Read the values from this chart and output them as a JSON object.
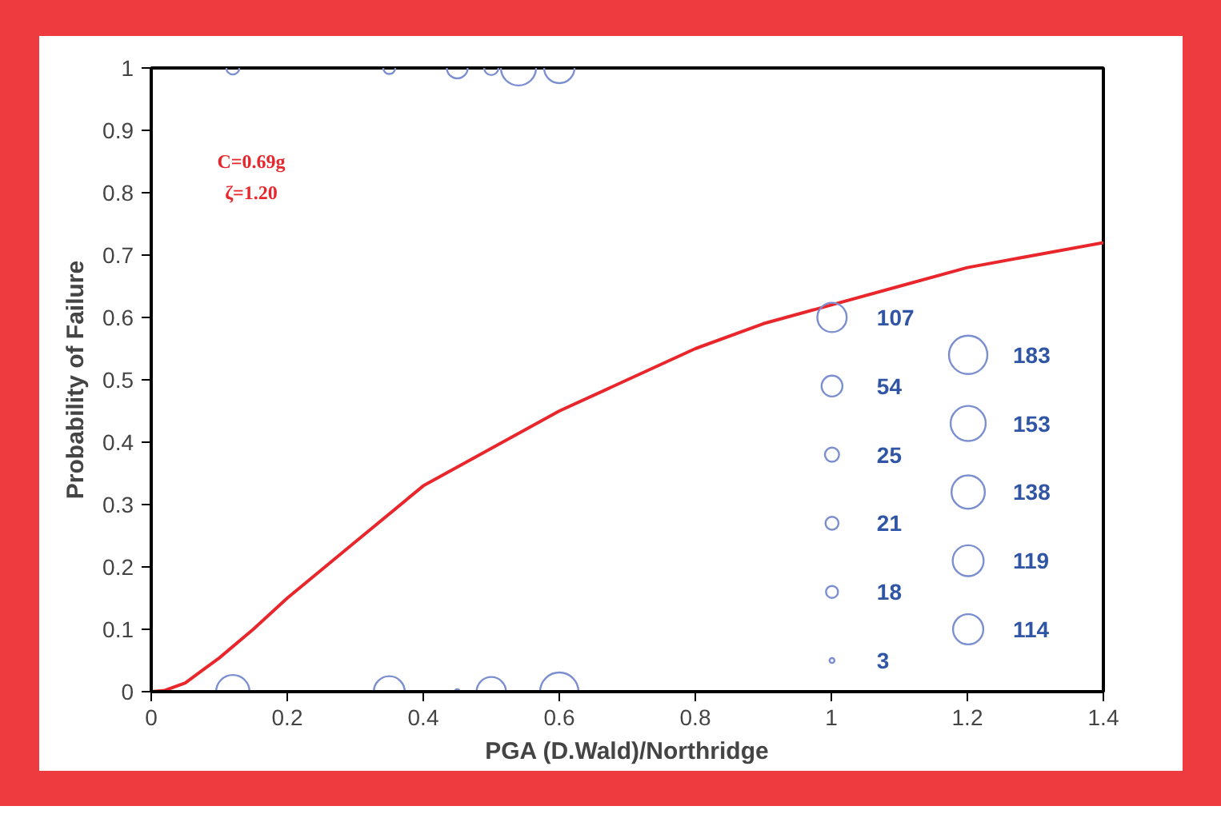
{
  "chart_data": {
    "type": "line",
    "xlabel": "PGA (D.Wald)/Northridge",
    "ylabel": "Probability of Failure",
    "xlim": [
      0,
      1.4
    ],
    "ylim": [
      0,
      1
    ],
    "xticks": [
      0,
      0.2,
      0.4,
      0.6,
      0.8,
      1,
      1.2,
      1.4
    ],
    "yticks": [
      0,
      0.1,
      0.2,
      0.3,
      0.4,
      0.5,
      0.6,
      0.7,
      0.8,
      0.9,
      1
    ],
    "grid": false,
    "annotations": [
      "C=0.69g",
      "ζ=1.20"
    ],
    "size_legend": [
      107,
      54,
      25,
      21,
      18,
      3,
      183,
      153,
      138,
      119,
      114
    ],
    "series": [
      {
        "color": "#e8262b",
        "x": [
          0,
          0.02,
          0.05,
          0.1,
          0.15,
          0.2,
          0.3,
          0.4,
          0.5,
          0.6,
          0.7,
          0.8,
          0.9,
          1.0,
          1.1,
          1.2,
          1.3,
          1.4
        ],
        "values": [
          0,
          0.002,
          0.014,
          0.054,
          0.1,
          0.15,
          0.24,
          0.33,
          0.39,
          0.45,
          0.5,
          0.55,
          0.59,
          0.62,
          0.65,
          0.68,
          0.7,
          0.72
        ]
      },
      {
        "type": "bubble",
        "color": "#7b8fd0",
        "x": [
          0.12,
          0.35,
          0.45,
          0.5,
          0.54,
          0.6,
          0.12,
          0.35,
          0.45,
          0.5,
          0.6
        ],
        "values": [
          1,
          1,
          1,
          1,
          1,
          1,
          0,
          0,
          0,
          0,
          0
        ],
        "sizes": [
          21,
          18,
          54,
          25,
          153,
          114,
          138,
          119,
          3,
          107,
          183
        ]
      }
    ]
  }
}
